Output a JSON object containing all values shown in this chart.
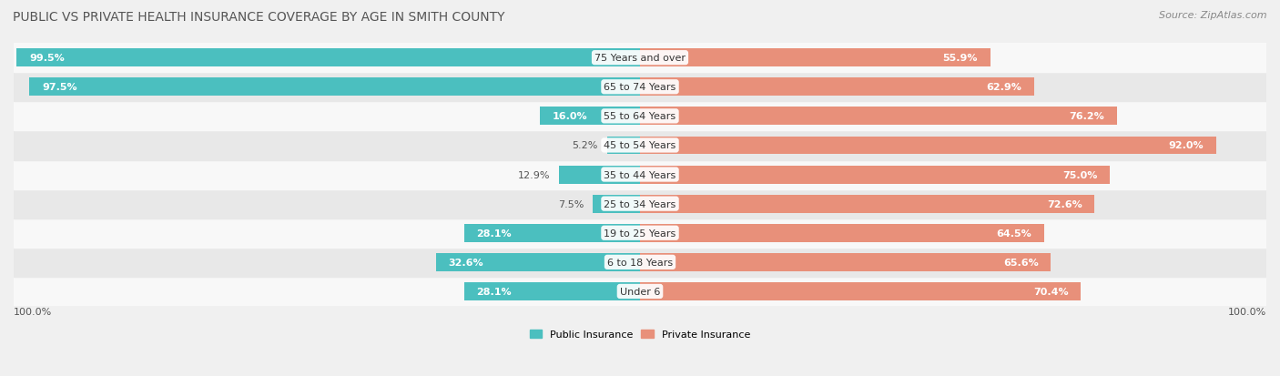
{
  "title": "PUBLIC VS PRIVATE HEALTH INSURANCE COVERAGE BY AGE IN SMITH COUNTY",
  "source": "Source: ZipAtlas.com",
  "categories": [
    "Under 6",
    "6 to 18 Years",
    "19 to 25 Years",
    "25 to 34 Years",
    "35 to 44 Years",
    "45 to 54 Years",
    "55 to 64 Years",
    "65 to 74 Years",
    "75 Years and over"
  ],
  "public_values": [
    28.1,
    32.6,
    28.1,
    7.5,
    12.9,
    5.2,
    16.0,
    97.5,
    99.5
  ],
  "private_values": [
    70.4,
    65.6,
    64.5,
    72.6,
    75.0,
    92.0,
    76.2,
    62.9,
    55.9
  ],
  "public_color": "#4bbfbf",
  "private_color": "#e8907a",
  "bg_color": "#f0f0f0",
  "row_bg_light": "#f8f8f8",
  "row_bg_dark": "#e8e8e8",
  "label_color_dark": "#555555",
  "label_color_light": "#ffffff",
  "axis_label_left": "100.0%",
  "axis_label_right": "100.0%",
  "max_value": 100.0,
  "title_fontsize": 10,
  "source_fontsize": 8,
  "bar_label_fontsize": 8,
  "category_fontsize": 8,
  "legend_fontsize": 8,
  "bar_height": 0.62,
  "pub_inside_threshold": 15,
  "priv_inside_threshold": 15
}
